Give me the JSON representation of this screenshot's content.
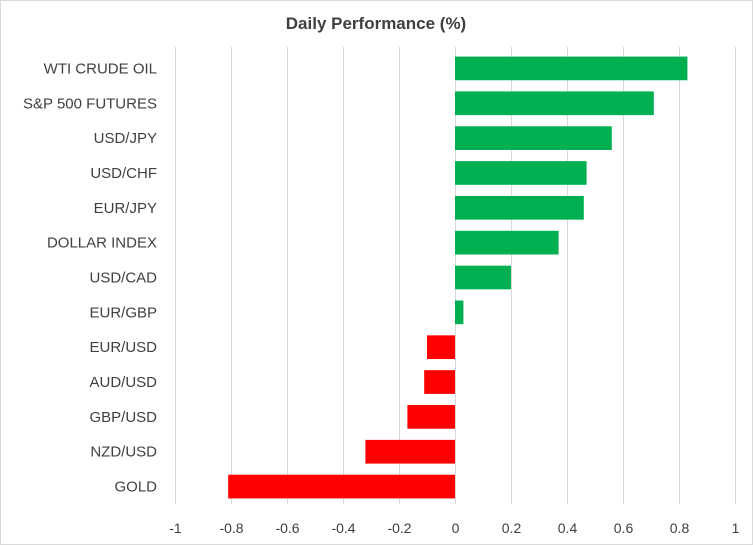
{
  "chart_data": {
    "type": "bar",
    "orientation": "horizontal",
    "title": "Daily Performance (%)",
    "xlabel": "",
    "ylabel": "",
    "categories": [
      "WTI CRUDE OIL",
      "S&P 500 FUTURES",
      "USD/JPY",
      "USD/CHF",
      "EUR/JPY",
      "DOLLAR INDEX",
      "USD/CAD",
      "EUR/GBP",
      "EUR/USD",
      "AUD/USD",
      "GBP/USD",
      "NZD/USD",
      "GOLD"
    ],
    "values": [
      0.83,
      0.71,
      0.56,
      0.47,
      0.46,
      0.37,
      0.2,
      0.03,
      -0.1,
      -0.11,
      -0.17,
      -0.32,
      -0.81
    ],
    "xlim": [
      -1,
      1
    ],
    "xticks": [
      -1,
      -0.8,
      -0.6,
      -0.4,
      -0.2,
      0,
      0.2,
      0.4,
      0.6,
      0.8,
      1
    ],
    "xtick_labels": [
      "-1",
      "-0.8",
      "-0.6",
      "-0.4",
      "-0.2",
      "0",
      "0.2",
      "0.4",
      "0.6",
      "0.8",
      "1"
    ],
    "grid": true,
    "legend": "none",
    "colors": {
      "positive": "#00b050",
      "negative": "#ff0000",
      "grid": "#d9d9d9",
      "text": "#404040"
    }
  }
}
